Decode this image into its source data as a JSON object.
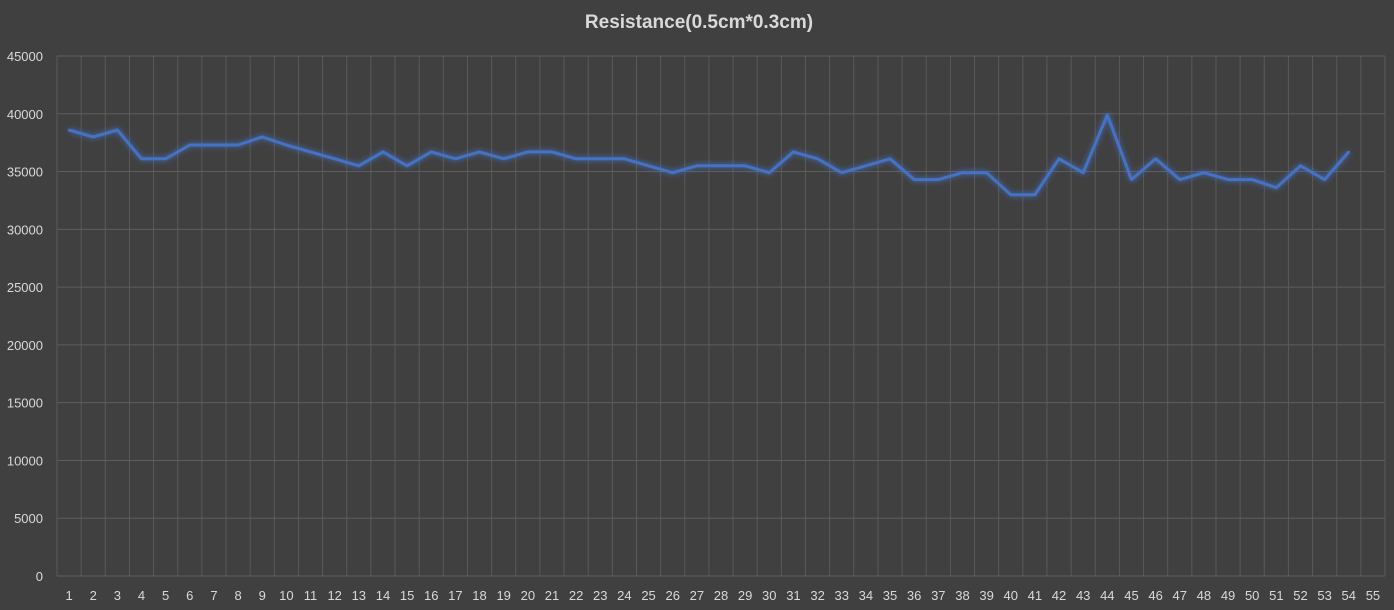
{
  "chart_data": {
    "type": "line",
    "title": "Resistance(0.5cm*0.3cm)",
    "xlabel": "",
    "ylabel": "",
    "x": [
      1,
      2,
      3,
      4,
      5,
      6,
      7,
      8,
      9,
      10,
      11,
      12,
      13,
      14,
      15,
      16,
      17,
      18,
      19,
      20,
      21,
      22,
      23,
      24,
      25,
      26,
      27,
      28,
      29,
      30,
      31,
      32,
      33,
      34,
      35,
      36,
      37,
      38,
      39,
      40,
      41,
      42,
      43,
      44,
      45,
      46,
      47,
      48,
      49,
      50,
      51,
      52,
      53,
      54
    ],
    "x_ticks": [
      1,
      2,
      3,
      4,
      5,
      6,
      7,
      8,
      9,
      10,
      11,
      12,
      13,
      14,
      15,
      16,
      17,
      18,
      19,
      20,
      21,
      22,
      23,
      24,
      25,
      26,
      27,
      28,
      29,
      30,
      31,
      32,
      33,
      34,
      35,
      36,
      37,
      38,
      39,
      40,
      41,
      42,
      43,
      44,
      45,
      46,
      47,
      48,
      49,
      50,
      51,
      52,
      53,
      54,
      55
    ],
    "y_ticks": [
      0,
      5000,
      10000,
      15000,
      20000,
      25000,
      30000,
      35000,
      40000,
      45000
    ],
    "ylim": [
      0,
      45000
    ],
    "grid": true,
    "series": [
      {
        "values": [
          38600,
          38000,
          38600,
          36100,
          36100,
          37300,
          37300,
          37300,
          38000,
          37300,
          36700,
          36100,
          35500,
          36700,
          35500,
          36700,
          36100,
          36700,
          36100,
          36700,
          36700,
          36100,
          36100,
          36100,
          35500,
          34900,
          35500,
          35500,
          35500,
          34900,
          36700,
          36100,
          34900,
          35500,
          36100,
          34300,
          34300,
          34900,
          34900,
          33000,
          33000,
          36100,
          34900,
          39900,
          34300,
          36100,
          34300,
          34900,
          34300,
          34300,
          33600,
          35500,
          34300,
          36700
        ],
        "color": "#4472c4"
      }
    ]
  }
}
